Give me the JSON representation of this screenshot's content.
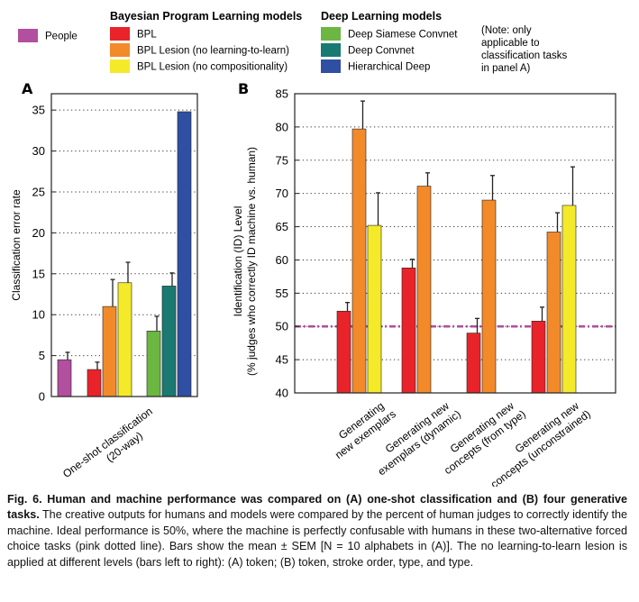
{
  "legend": {
    "people_label": "People",
    "bpl_heading": "Bayesian Program Learning models",
    "dl_heading": "Deep Learning models",
    "note": [
      "(Note: only",
      "applicable to",
      "classification tasks",
      "in panel A)"
    ],
    "items": [
      {
        "key": "people",
        "label": "People",
        "color": "#b24f9e"
      },
      {
        "key": "bpl",
        "label": "BPL",
        "color": "#e8242a"
      },
      {
        "key": "bpl_ltl",
        "label": "BPL Lesion (no learning-to-learn)",
        "color": "#f28a2a"
      },
      {
        "key": "bpl_comp",
        "label": "BPL Lesion (no compositionality)",
        "color": "#f5ea2a"
      },
      {
        "key": "siamese",
        "label": "Deep Siamese Convnet",
        "color": "#6cb642"
      },
      {
        "key": "convnet",
        "label": "Deep Convnet",
        "color": "#1a7a72"
      },
      {
        "key": "hdeep",
        "label": "Hierarchical Deep",
        "color": "#2f4fa3"
      }
    ]
  },
  "chart_data": [
    {
      "panel": "A",
      "type": "bar",
      "ylabel": "Classification error rate",
      "ylim": [
        0,
        37
      ],
      "yticks": [
        0,
        5,
        10,
        15,
        20,
        25,
        30,
        35
      ],
      "grid": "dotted horizontal",
      "category": "One-shot classification (20-way)",
      "category_lines": [
        "One-shot classification",
        "(20-way)"
      ],
      "series": [
        {
          "key": "people",
          "value": 4.5,
          "sem": 0.9
        },
        {
          "key": "bpl",
          "value": 3.3,
          "sem": 0.9
        },
        {
          "key": "bpl_ltl",
          "value": 11.0,
          "sem": 3.3
        },
        {
          "key": "bpl_comp",
          "value": 13.9,
          "sem": 2.5
        },
        {
          "key": "siamese",
          "value": 8.0,
          "sem": 1.8
        },
        {
          "key": "convnet",
          "value": 13.5,
          "sem": 1.6
        },
        {
          "key": "hdeep",
          "value": 34.8,
          "sem": 0
        }
      ]
    },
    {
      "panel": "B",
      "type": "bar",
      "ylabel": [
        "Identification (ID) Level",
        "(% judges who correctly ID machine vs. human)"
      ],
      "ylim": [
        40,
        85
      ],
      "yticks": [
        40,
        45,
        50,
        55,
        60,
        65,
        70,
        75,
        80,
        85
      ],
      "grid": "dotted horizontal",
      "reference_line": {
        "y": 50,
        "color": "#b24f9e",
        "style": "dash-dot"
      },
      "series_keys": [
        "bpl",
        "bpl_ltl",
        "bpl_comp"
      ],
      "groups": [
        {
          "label": [
            "Generating",
            "new exemplars"
          ],
          "values": [
            52.3,
            79.7,
            65.2
          ],
          "sem": [
            1.3,
            4.2,
            4.9
          ]
        },
        {
          "label": [
            "Generating new",
            "exemplars (dynamic)"
          ],
          "values": [
            58.8,
            71.1,
            null
          ],
          "sem": [
            1.3,
            2.0,
            null
          ]
        },
        {
          "label": [
            "Generating new",
            "concepts (from type)"
          ],
          "values": [
            49.0,
            69.0,
            null
          ],
          "sem": [
            2.2,
            3.7,
            null
          ]
        },
        {
          "label": [
            "Generating new",
            "concepts (unconstrained)"
          ],
          "values": [
            50.8,
            64.2,
            68.2
          ],
          "sem": [
            2.1,
            2.9,
            5.8
          ]
        }
      ]
    }
  ],
  "caption": {
    "fig_label": "Fig. 6. Human and machine performance was compared on (A) one-shot classification and (B) four generative tasks.",
    "body": " The creative outputs for humans and models were compared by the percent of human judges to correctly identify the machine. Ideal performance is 50%, where the machine is perfectly confusable with humans in these two-alternative forced choice tasks (pink dotted line). Bars show the mean ± SEM [N = 10 alphabets in (A)]. The no learning-to-learn lesion is applied at different levels (bars left to right): (A) token; (B) token, stroke order, type, and type."
  }
}
